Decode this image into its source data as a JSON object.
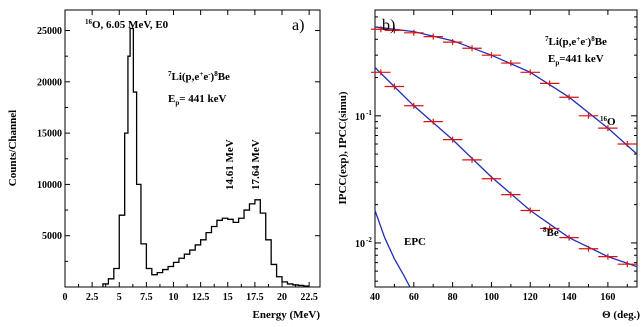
{
  "chart_data": [
    {
      "type": "line",
      "panel_label": "a)",
      "xlabel": "Energy (MeV)",
      "ylabel": "Counts/Channel",
      "xlim": [
        0,
        23.5
      ],
      "ylim": [
        0,
        27000
      ],
      "xticks": [
        "0",
        "2.5",
        "5",
        "7.5",
        "10",
        "12.5",
        "15",
        "17.5",
        "20",
        "22.5"
      ],
      "yticks": [
        "5000",
        "10000",
        "15000",
        "20000",
        "25000"
      ],
      "annotations": {
        "peak_label": {
          "sup": "16",
          "text": "O, 6.05 MeV, E0"
        },
        "reaction": {
          "sup1": "7",
          "pre": "Li(p,e",
          "sup2": "+",
          "mid": "e",
          "sup3": "-",
          "post": ")",
          "sup4": "8",
          "end": "Be"
        },
        "beam": {
          "pre": "E",
          "sub": "p",
          "post": "= 441 keV"
        },
        "line1": "14.61 MeV",
        "line2": "17.64 MeV"
      },
      "grid": false,
      "series": [
        {
          "x": [
            3.5,
            4.0,
            4.5,
            5.0,
            5.5,
            5.8,
            6.0,
            6.3,
            6.6,
            7.0,
            7.5,
            8.0,
            8.5,
            9.0,
            9.5,
            10.0,
            10.5,
            11.0,
            11.5,
            12.0,
            12.5,
            13.0,
            13.5,
            14.0,
            14.5,
            15.0,
            15.5,
            16.0,
            16.5,
            17.0,
            17.5,
            18.0,
            18.5,
            19.0,
            19.5,
            20.0,
            20.5,
            21.0,
            21.5,
            22.0
          ],
          "values": [
            300,
            800,
            1800,
            7000,
            15000,
            22500,
            25200,
            19000,
            10000,
            4200,
            1800,
            1200,
            1400,
            1700,
            2000,
            2400,
            2800,
            3200,
            3600,
            4100,
            4600,
            5300,
            5900,
            6500,
            6700,
            6600,
            6300,
            6700,
            7500,
            8100,
            8500,
            7200,
            4600,
            2200,
            1000,
            500,
            300,
            200,
            150,
            100
          ]
        }
      ]
    },
    {
      "type": "scatter",
      "panel_label": "b)",
      "xlabel": "Θ (deg.)",
      "ylabel": "IPCC(exp), IPCC(simu)",
      "xlim": [
        40,
        175
      ],
      "ylim": [
        0.0045,
        0.68
      ],
      "yscale": "log",
      "xticks": [
        "40",
        "60",
        "80",
        "100",
        "120",
        "140",
        "160"
      ],
      "yticks": [
        "10",
        "10"
      ],
      "ytick_exps": [
        "-1",
        "-2"
      ],
      "annotations": {
        "reaction": {
          "sup1": "7",
          "pre": "Li(p,e",
          "sup2": "+",
          "mid": "e",
          "sup3": "-",
          "post": ")",
          "sup4": "8",
          "end": "Be"
        },
        "beam": {
          "pre": "E",
          "sub": "p",
          "post": "=441 keV"
        },
        "o16": {
          "sup": "16",
          "text": "O"
        },
        "be8": {
          "sup": "8",
          "text": "Be"
        },
        "epc": "EPC"
      },
      "grid": false,
      "series": [
        {
          "x": [
            43,
            50,
            60,
            70,
            80,
            90,
            100,
            110,
            120,
            130,
            140,
            150,
            160,
            170
          ],
          "values": [
            0.48,
            0.47,
            0.45,
            0.42,
            0.38,
            0.34,
            0.3,
            0.26,
            0.22,
            0.18,
            0.14,
            0.1,
            0.08,
            0.06
          ],
          "xerr": 5
        },
        {
          "x": [
            43,
            50,
            60,
            70,
            80,
            90,
            100,
            110,
            120,
            130,
            140,
            150,
            160,
            170
          ],
          "values": [
            0.22,
            0.17,
            0.12,
            0.09,
            0.065,
            0.045,
            0.032,
            0.024,
            0.018,
            0.013,
            0.011,
            0.009,
            0.0078,
            0.0068
          ],
          "xerr": 5
        }
      ],
      "curves": [
        {
          "x": [
            40,
            60,
            80,
            100,
            120,
            140,
            160,
            175
          ],
          "values": [
            0.5,
            0.46,
            0.39,
            0.3,
            0.22,
            0.14,
            0.08,
            0.05
          ]
        },
        {
          "x": [
            40,
            60,
            80,
            100,
            120,
            140,
            160,
            175
          ],
          "values": [
            0.24,
            0.12,
            0.065,
            0.033,
            0.018,
            0.011,
            0.0078,
            0.0065
          ]
        },
        {
          "x": [
            40,
            45,
            50,
            55,
            58
          ],
          "values": [
            0.018,
            0.011,
            0.0075,
            0.0055,
            0.0045
          ]
        }
      ]
    }
  ]
}
